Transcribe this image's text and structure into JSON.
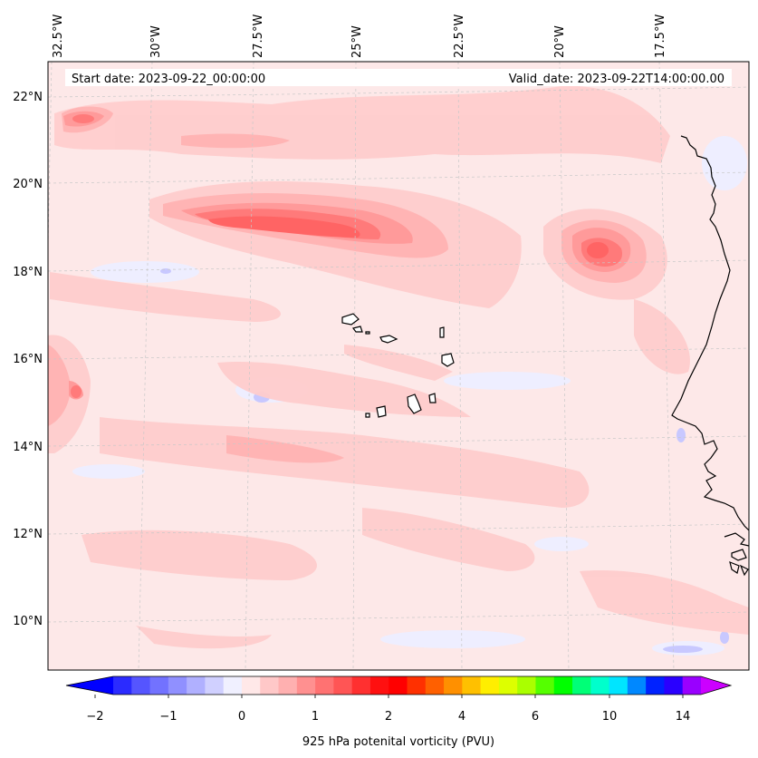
{
  "map": {
    "header": {
      "start_date": "Start date: 2023-09-22_00:00:00",
      "valid_date": "Valid_date: 2023-09-22T14:00:00.00"
    },
    "lon_labels": [
      "32.5°W",
      "30°W",
      "27.5°W",
      "25°W",
      "22.5°W",
      "20°W",
      "17.5°W"
    ],
    "lat_labels": [
      "22°N",
      "20°N",
      "18°N",
      "16°N",
      "14°N",
      "12°N",
      "10°N"
    ],
    "background_color": "#fde8e8"
  },
  "colorbar": {
    "title": "925 hPa potenital vorticity (PVU)",
    "tick_labels": [
      "−2",
      "−1",
      "0",
      "1",
      "2",
      "4",
      "6",
      "10",
      "14"
    ],
    "colors": [
      "#0000ff",
      "#2b2bff",
      "#5555ff",
      "#7272ff",
      "#9090ff",
      "#b0b0ff",
      "#d0d0ff",
      "#f0f0ff",
      "#ffe8e8",
      "#ffc8c8",
      "#ffb0b0",
      "#ff9090",
      "#ff7272",
      "#ff5555",
      "#ff3030",
      "#ff1010",
      "#ff0000",
      "#ff3000",
      "#ff6000",
      "#ff9000",
      "#ffc000",
      "#ffee00",
      "#ddff00",
      "#aaff00",
      "#55ff00",
      "#00ff00",
      "#00ff77",
      "#00ffcc",
      "#00e5ff",
      "#0088ff",
      "#0022ff",
      "#2a00ff",
      "#9900ff",
      "#cc00ff"
    ]
  }
}
